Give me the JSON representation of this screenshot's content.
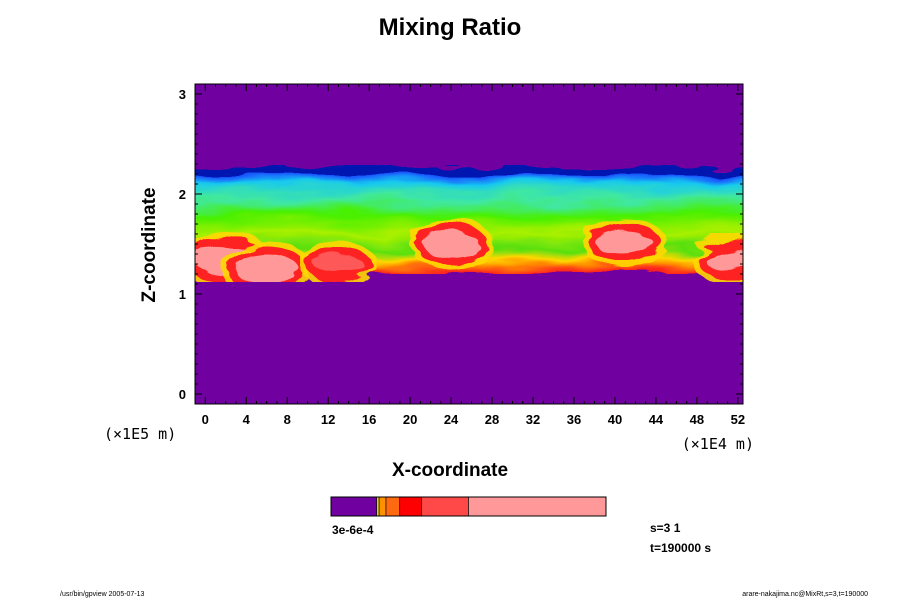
{
  "chart_data": {
    "type": "heatmap",
    "title": "Mixing Ratio",
    "xlabel": "X-coordinate",
    "ylabel": "Z-coordinate",
    "x_unit": "(×1E4 m)",
    "y_unit": "(×1E5 m)",
    "xlim": [
      -1,
      52.5
    ],
    "ylim": [
      -0.1,
      3.1
    ],
    "x_ticks": [
      0,
      4,
      8,
      12,
      16,
      20,
      24,
      28,
      32,
      36,
      40,
      44,
      48,
      52
    ],
    "y_ticks": [
      0,
      1,
      2,
      3
    ],
    "layers": [
      {
        "name": "background",
        "level": 0,
        "color": "#7000a0"
      },
      {
        "name": "upper-mixing-layer",
        "z_bottom": 1.2,
        "z_top": 2.27,
        "levels": [
          "blue",
          "cyan",
          "green",
          "yellow",
          "orange",
          "red",
          "pink"
        ]
      }
    ],
    "high_value_cores": [
      {
        "x": 2,
        "z": 1.35,
        "value_rank": 6
      },
      {
        "x": 6,
        "z": 1.25,
        "value_rank": 6
      },
      {
        "x": 13,
        "z": 1.3,
        "value_rank": 4
      },
      {
        "x": 24,
        "z": 1.5,
        "value_rank": 5
      },
      {
        "x": 41,
        "z": 1.5,
        "value_rank": 5
      },
      {
        "x": 51.5,
        "z": 1.35,
        "value_rank": 5
      }
    ],
    "colorbar": {
      "colors": [
        "#7000a0",
        "#e8d000",
        "#ff9000",
        "#ff6a10",
        "#ff0000",
        "#ff4848",
        "#ff9898"
      ],
      "stops": [
        0,
        0.166,
        0.175,
        0.2,
        0.25,
        0.33,
        0.5,
        1.0
      ],
      "label": "3e-6e-4"
    }
  },
  "step_label": "s=3 1",
  "time_label": "t=190000 s",
  "footer_left": "/usr/bin/gpview 2005-07-13",
  "footer_right": "arare-nakajima.nc@MixRt,s=3,t=190000"
}
